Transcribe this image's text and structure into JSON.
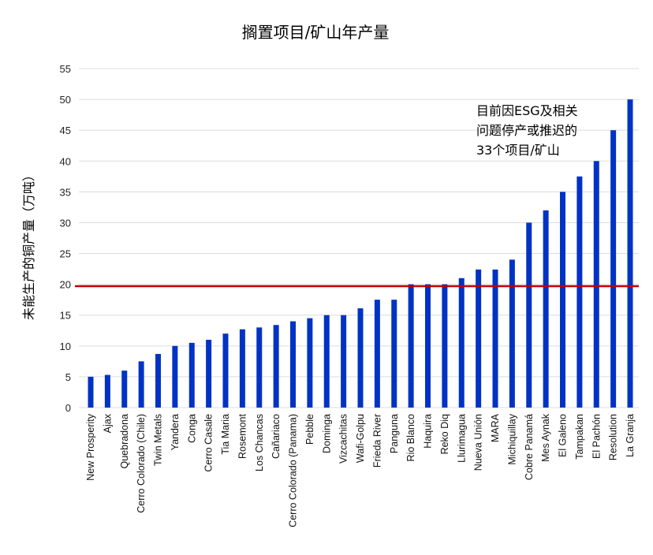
{
  "chart_data": {
    "type": "bar",
    "title": "搁置项目/矿山年产量",
    "xlabel": "",
    "ylabel": "未能生产的铜产量（万吨）",
    "ylim": [
      0,
      55
    ],
    "yticks": [
      0,
      5,
      10,
      15,
      20,
      25,
      30,
      35,
      40,
      45,
      50,
      55
    ],
    "grid": true,
    "bar_color": "#0033c4",
    "reference_line": {
      "value": 19.7,
      "color": "#c00000"
    },
    "annotation": [
      "目前因ESG及相关",
      "问题停产或推迟的",
      "33个项目/矿山"
    ],
    "categories": [
      "New Prosperity",
      "Ajax",
      "Quebradona",
      "Cerro Colorado (Chile)",
      "Twin Metals",
      "Yandera",
      "Conga",
      "Cerro Casale",
      "Tia Maria",
      "Rosemont",
      "Los Chancas",
      "Cañariaco",
      "Cerro Colorado (Panama)",
      "Pebble",
      "Dominga",
      "Vizcachitas",
      "Wafi-Golpu",
      "Frieda River",
      "Panguna",
      "Rio Blanco",
      "Haquira",
      "Reko Diq",
      "Llurimagua",
      "Nueva Unión",
      "MARA",
      "Michiquillay",
      "Cobre Panamá",
      "Mes Aynak",
      "El Galeno",
      "Tampakan",
      "El Pachón",
      "Resolution",
      "La Granja"
    ],
    "values": [
      5,
      5.3,
      6,
      7.5,
      8.7,
      10,
      10.5,
      11,
      12,
      12.7,
      13,
      13.4,
      14,
      14.5,
      15,
      15,
      16.1,
      17.5,
      17.5,
      20,
      20,
      20,
      21,
      22.4,
      22.4,
      24,
      30,
      32,
      35,
      37.5,
      40,
      45,
      50
    ]
  }
}
